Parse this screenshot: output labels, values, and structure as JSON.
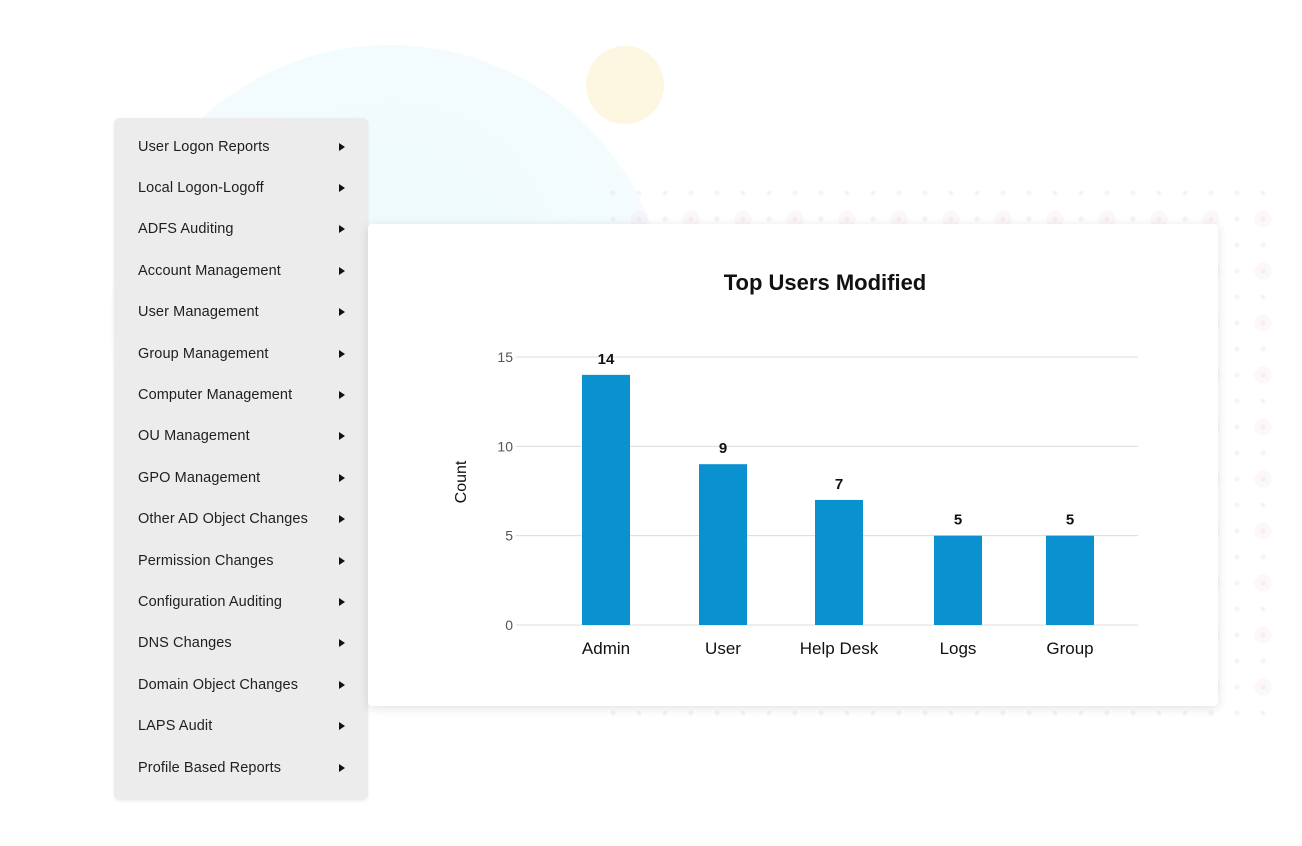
{
  "menu": {
    "items": [
      {
        "label": "User Logon Reports"
      },
      {
        "label": "Local Logon-Logoff"
      },
      {
        "label": "ADFS Auditing"
      },
      {
        "label": "Account Management"
      },
      {
        "label": "User Management"
      },
      {
        "label": "Group Management"
      },
      {
        "label": "Computer Management"
      },
      {
        "label": "OU Management"
      },
      {
        "label": "GPO Management"
      },
      {
        "label": "Other AD Object Changes"
      },
      {
        "label": "Permission Changes"
      },
      {
        "label": "Configuration Auditing"
      },
      {
        "label": "DNS Changes"
      },
      {
        "label": "Domain Object Changes"
      },
      {
        "label": "LAPS Audit"
      },
      {
        "label": "Profile Based Reports"
      }
    ],
    "arrow_icon": "triangle-right-icon"
  },
  "chart_data": {
    "type": "bar",
    "title": "Top Users Modified",
    "xlabel": "",
    "ylabel": "Count",
    "categories": [
      "Admin",
      "User",
      "Help Desk",
      "Logs",
      "Group"
    ],
    "values": [
      14,
      9,
      7,
      5,
      5
    ],
    "yticks": [
      0,
      5,
      10,
      15
    ],
    "ylim": [
      0,
      15
    ],
    "grid": true,
    "bar_color": "#0a91cf"
  },
  "colors": {
    "menu_background": "#ececec",
    "bar": "#0a91cf",
    "gridline": "#dcdcdc"
  }
}
